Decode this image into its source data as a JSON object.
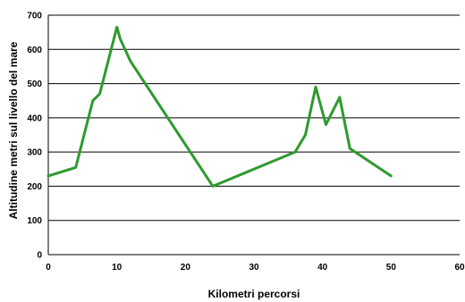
{
  "chart_data": {
    "type": "line",
    "title": "",
    "xlabel": "Kilometri percorsi",
    "ylabel": "Altitudine metri sul livello del mare",
    "xlim": [
      0,
      60
    ],
    "ylim": [
      0,
      700
    ],
    "x_ticks": [
      0,
      10,
      20,
      30,
      40,
      50,
      60
    ],
    "y_ticks": [
      0,
      100,
      200,
      300,
      400,
      500,
      600,
      700
    ],
    "grid": "horizontal",
    "line_color": "#2e9a2e",
    "series": [
      {
        "x": [
          0,
          4,
          6.5,
          7.5,
          10,
          10.5,
          12,
          24,
          36,
          37.5,
          39,
          40.5,
          42.5,
          44,
          50
        ],
        "y": [
          230,
          255,
          450,
          470,
          665,
          630,
          565,
          200,
          300,
          350,
          490,
          380,
          460,
          310,
          230
        ]
      }
    ]
  }
}
